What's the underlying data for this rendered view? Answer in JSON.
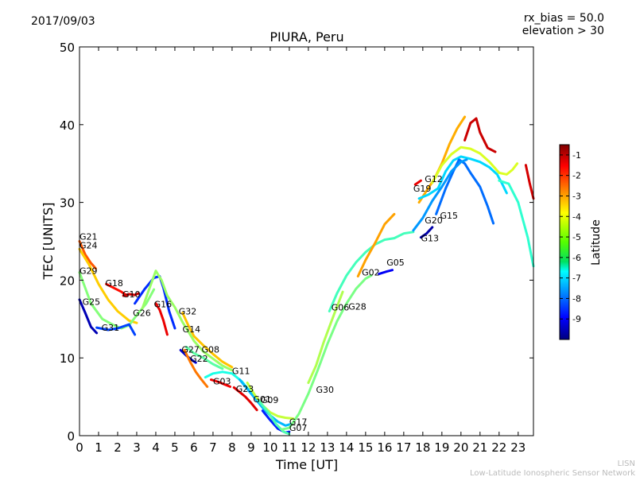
{
  "header": {
    "date": "2017/09/03",
    "rx_bias": "rx_bias = 50.0",
    "elevation": "elevation > 30"
  },
  "footer": {
    "org_short": "LISN",
    "org_long": "Low-Latitude Ionospheric Sensor Network"
  },
  "colorbar": {
    "label": "Latitude",
    "range": [
      -10,
      -0.5
    ],
    "ticks": [
      "-1",
      "-2",
      "-3",
      "-4",
      "-5",
      "-6",
      "-7",
      "-8",
      "-9"
    ],
    "colormap": "jet"
  },
  "chart_data": {
    "type": "line",
    "title": "PIURA, Peru",
    "xlabel": "Time [UT]",
    "ylabel": "TEC [UNITS]",
    "xlim": [
      0,
      23.8
    ],
    "ylim": [
      0,
      50
    ],
    "xticks": [
      0,
      1,
      2,
      3,
      4,
      5,
      6,
      7,
      8,
      9,
      10,
      11,
      12,
      13,
      14,
      15,
      16,
      17,
      18,
      19,
      20,
      21,
      22,
      23
    ],
    "yticks": [
      0,
      10,
      20,
      30,
      40,
      50
    ],
    "grid": false,
    "series": [
      {
        "name": "G21",
        "lat": -2.5,
        "points": [
          [
            0,
            25
          ],
          [
            0.3,
            23.3
          ],
          [
            0.6,
            22.2
          ],
          [
            0.85,
            21.5
          ]
        ]
      },
      {
        "name": "G24",
        "lat": -3.6,
        "points": [
          [
            0,
            24
          ],
          [
            0.5,
            22
          ],
          [
            1,
            19.5
          ],
          [
            1.5,
            17.5
          ],
          [
            2,
            16
          ],
          [
            2.6,
            14.8
          ],
          [
            3,
            14.5
          ]
        ]
      },
      {
        "name": "G29",
        "lat": -5.2,
        "points": [
          [
            0,
            21
          ],
          [
            0.6,
            17
          ],
          [
            1.2,
            15
          ],
          [
            1.8,
            14.2
          ],
          [
            2.2,
            13.8
          ],
          [
            2.6,
            14.2
          ],
          [
            3,
            15.5
          ],
          [
            3.5,
            17
          ],
          [
            3.9,
            18.8
          ]
        ]
      },
      {
        "name": "G25",
        "lat": -9.5,
        "points": [
          [
            0,
            17.5
          ],
          [
            0.3,
            15.8
          ],
          [
            0.6,
            14
          ],
          [
            0.9,
            13.2
          ]
        ]
      },
      {
        "name": "G31",
        "lat": -8.2,
        "points": [
          [
            0.9,
            13.9
          ],
          [
            1.5,
            13.6
          ],
          [
            2,
            13.8
          ],
          [
            2.6,
            14.3
          ],
          [
            2.9,
            13
          ]
        ]
      },
      {
        "name": "G18",
        "lat": -1.8,
        "points": [
          [
            1.4,
            19.5
          ],
          [
            1.8,
            19
          ],
          [
            2.2,
            18.5
          ],
          [
            2.5,
            18
          ]
        ]
      },
      {
        "name": "G10",
        "lat": -1.2,
        "points": [
          [
            2.3,
            18
          ],
          [
            2.6,
            18.2
          ],
          [
            2.9,
            18.1
          ],
          [
            3.1,
            18.3
          ]
        ]
      },
      {
        "name": "G26",
        "lat": -8.4,
        "points": [
          [
            2.9,
            17
          ],
          [
            3.4,
            18.8
          ],
          [
            3.9,
            20.3
          ],
          [
            4.2,
            20.5
          ],
          [
            4.4,
            19
          ],
          [
            4.7,
            16
          ],
          [
            5,
            13.8
          ]
        ]
      },
      {
        "name": "G16",
        "lat": -1.5,
        "points": [
          [
            4,
            17
          ],
          [
            4.2,
            16.2
          ],
          [
            4.4,
            14.8
          ],
          [
            4.6,
            13
          ]
        ]
      },
      {
        "name": "G32",
        "lat": -3.5,
        "points": [
          [
            5.4,
            15.8
          ],
          [
            5.7,
            14.2
          ],
          [
            6,
            12.8
          ],
          [
            6.5,
            11.6
          ],
          [
            7,
            10.5
          ],
          [
            7.5,
            9.5
          ],
          [
            8,
            8.8
          ]
        ]
      },
      {
        "name": "G14",
        "lat": -5.0,
        "points": [
          [
            3.3,
            16.4
          ],
          [
            3.6,
            18.5
          ],
          [
            4.0,
            21.2
          ],
          [
            4.3,
            20
          ],
          [
            4.6,
            18
          ],
          [
            5,
            16.5
          ],
          [
            5.4,
            14.6
          ],
          [
            5.7,
            13.4
          ],
          [
            6,
            12.2
          ],
          [
            6.5,
            10.8
          ],
          [
            7,
            9.9
          ],
          [
            7.5,
            9
          ],
          [
            8,
            8.4
          ]
        ]
      },
      {
        "name": "G27",
        "lat": -9.3,
        "points": [
          [
            5.3,
            11
          ],
          [
            5.6,
            10.3
          ],
          [
            5.9,
            9.7
          ],
          [
            6.1,
            9.4
          ]
        ]
      },
      {
        "name": "G22",
        "lat": -2.8,
        "points": [
          [
            5.5,
            11
          ],
          [
            5.8,
            9.5
          ],
          [
            6.1,
            8.2
          ],
          [
            6.4,
            7.2
          ],
          [
            6.7,
            6.3
          ]
        ]
      },
      {
        "name": "G08",
        "lat": -5.6,
        "points": [
          [
            5.6,
            11.4
          ],
          [
            6,
            10.6
          ],
          [
            6.5,
            10
          ],
          [
            7,
            9.2
          ],
          [
            7.5,
            8.6
          ]
        ]
      },
      {
        "name": "G11",
        "lat": -6.2,
        "points": [
          [
            6.6,
            7.5
          ],
          [
            7,
            8
          ],
          [
            7.5,
            8.2
          ],
          [
            8,
            8
          ],
          [
            8.5,
            7
          ],
          [
            9,
            5.5
          ],
          [
            9.5,
            4
          ]
        ]
      },
      {
        "name": "G03",
        "lat": -1.6,
        "points": [
          [
            6.9,
            7.2
          ],
          [
            7.3,
            6.9
          ],
          [
            7.6,
            6.6
          ],
          [
            7.9,
            6.3
          ]
        ]
      },
      {
        "name": "G23",
        "lat": -1.4,
        "points": [
          [
            8.1,
            6.2
          ],
          [
            8.4,
            5.6
          ],
          [
            8.7,
            5
          ],
          [
            9,
            4.2
          ],
          [
            9.3,
            3.3
          ]
        ]
      },
      {
        "name": "G01",
        "lat": -7.1,
        "points": [
          [
            8.4,
            7.2
          ],
          [
            8.8,
            6
          ],
          [
            9.2,
            4.8
          ],
          [
            9.6,
            3.6
          ],
          [
            10,
            2.6
          ],
          [
            10.4,
            1.8
          ],
          [
            10.8,
            1.3
          ],
          [
            11.1,
            1.5
          ]
        ]
      },
      {
        "name": "G09",
        "lat": -4.6,
        "points": [
          [
            8.8,
            6.8
          ],
          [
            9.2,
            5.2
          ],
          [
            9.6,
            3.9
          ],
          [
            10,
            3
          ],
          [
            10.4,
            2.5
          ],
          [
            10.8,
            2.3
          ],
          [
            11.2,
            2.2
          ]
        ]
      },
      {
        "name": "G17",
        "lat": -8.5,
        "points": [
          [
            9.6,
            3.2
          ],
          [
            10,
            2
          ],
          [
            10.4,
            0.9
          ],
          [
            10.8,
            0.4
          ],
          [
            11,
            0.5
          ]
        ]
      },
      {
        "name": "G07",
        "lat": -5.7,
        "points": [
          [
            9.4,
            4.5
          ],
          [
            9.9,
            3
          ],
          [
            10.3,
            1.5
          ],
          [
            10.7,
            0.5
          ],
          [
            11,
            0.2
          ]
        ]
      },
      {
        "name": "G30",
        "lat": -5.3,
        "points": [
          [
            10.6,
            0.8
          ],
          [
            11,
            1
          ],
          [
            11.5,
            2.8
          ],
          [
            12,
            5.4
          ],
          [
            12.5,
            8.5
          ],
          [
            13,
            11.8
          ],
          [
            13.5,
            14.7
          ],
          [
            14,
            17
          ],
          [
            14.5,
            18.9
          ],
          [
            15,
            20.2
          ],
          [
            15.3,
            20.6
          ]
        ]
      },
      {
        "name": "G06",
        "lat": -5.8,
        "points": [
          [
            13.1,
            16
          ],
          [
            13.5,
            18.3
          ],
          [
            14,
            20.6
          ],
          [
            14.5,
            22.3
          ],
          [
            15,
            23.6
          ],
          [
            15.5,
            24.6
          ],
          [
            16,
            25.2
          ],
          [
            16.5,
            25.4
          ],
          [
            17,
            26
          ],
          [
            17.5,
            26.2
          ]
        ]
      },
      {
        "name": "G28",
        "lat": -4.8,
        "points": [
          [
            12,
            6.8
          ],
          [
            12.4,
            9
          ],
          [
            12.8,
            12
          ],
          [
            13.1,
            14
          ],
          [
            13.5,
            16.6
          ],
          [
            13.8,
            18.5
          ]
        ]
      },
      {
        "name": "G02",
        "lat": -3.2,
        "points": [
          [
            14.6,
            20.5
          ],
          [
            15,
            22.6
          ],
          [
            15.5,
            24.8
          ],
          [
            16,
            27.2
          ],
          [
            16.5,
            28.5
          ]
        ]
      },
      {
        "name": "G05",
        "lat": -8.9,
        "points": [
          [
            15.7,
            20.8
          ],
          [
            16.1,
            21.1
          ],
          [
            16.4,
            21.3
          ]
        ]
      },
      {
        "name": "G13",
        "lat": -9.6,
        "points": [
          [
            17.9,
            25.5
          ],
          [
            18.2,
            26
          ],
          [
            18.5,
            26.8
          ]
        ]
      },
      {
        "name": "G19",
        "lat": -1.5,
        "points": [
          [
            17.6,
            32.3
          ],
          [
            17.9,
            32.8
          ]
        ]
      },
      {
        "name": "G12",
        "lat": -3.3,
        "points": [
          [
            17.8,
            30
          ],
          [
            18.2,
            31.5
          ],
          [
            18.6,
            33
          ],
          [
            19,
            35
          ],
          [
            19.4,
            37.5
          ],
          [
            19.8,
            39.5
          ],
          [
            20.2,
            41
          ]
        ]
      },
      {
        "name": "G20",
        "lat": -6.8,
        "points": [
          [
            17.8,
            30.5
          ],
          [
            18.3,
            31
          ],
          [
            18.8,
            31.8
          ],
          [
            19.2,
            34
          ],
          [
            19.6,
            35.4
          ],
          [
            20,
            35.9
          ],
          [
            20.5,
            35.6
          ],
          [
            21,
            35.2
          ],
          [
            21.5,
            34.5
          ],
          [
            21.9,
            33.6
          ],
          [
            22.2,
            32.2
          ],
          [
            22.4,
            31.2
          ]
        ]
      },
      {
        "name": "G15",
        "lat": -7.8,
        "points": [
          [
            18.7,
            28.5
          ],
          [
            19.2,
            31.8
          ],
          [
            19.6,
            34
          ],
          [
            19.9,
            35.5
          ],
          [
            20.2,
            35
          ],
          [
            20.5,
            33.8
          ],
          [
            21,
            32
          ],
          [
            21.4,
            29.5
          ],
          [
            21.7,
            27.3
          ]
        ]
      },
      {
        "name": "G13b",
        "lat": -7.4,
        "points": [
          [
            17.5,
            26.4
          ],
          [
            18,
            28
          ],
          [
            18.5,
            30.2
          ],
          [
            19,
            32
          ],
          [
            19.5,
            34
          ],
          [
            20,
            35.2
          ],
          [
            20.3,
            35.5
          ]
        ]
      },
      {
        "name": "G20b",
        "lat": -4.4,
        "points": [
          [
            18.5,
            32.5
          ],
          [
            19,
            34.8
          ],
          [
            19.5,
            36.2
          ],
          [
            20,
            37.1
          ],
          [
            20.5,
            36.9
          ],
          [
            21,
            36.3
          ],
          [
            21.5,
            35.2
          ],
          [
            22,
            33.8
          ],
          [
            22.4,
            33.6
          ],
          [
            22.7,
            34.2
          ],
          [
            22.95,
            35
          ]
        ]
      },
      {
        "name": "G12b",
        "lat": -1.2,
        "points": [
          [
            20.2,
            38
          ],
          [
            20.5,
            40.2
          ],
          [
            20.8,
            40.8
          ],
          [
            21,
            39
          ],
          [
            21.4,
            37
          ],
          [
            21.8,
            36.5
          ]
        ]
      },
      {
        "name": "G15b",
        "lat": -6.0,
        "points": [
          [
            22,
            32.8
          ],
          [
            22.5,
            32.4
          ],
          [
            23,
            30
          ],
          [
            23.5,
            25.5
          ],
          [
            23.8,
            21.8
          ]
        ]
      },
      {
        "name": "G22b",
        "lat": -1.3,
        "points": [
          [
            23.4,
            34.8
          ],
          [
            23.6,
            32.5
          ],
          [
            23.8,
            30.5
          ]
        ]
      }
    ],
    "prn_labels": [
      {
        "text": "G21",
        "x": 0.0,
        "y": 25.2
      },
      {
        "text": "G24",
        "x": 0.0,
        "y": 24.1
      },
      {
        "text": "G29",
        "x": 0.0,
        "y": 20.8
      },
      {
        "text": "G25",
        "x": 0.15,
        "y": 16.8
      },
      {
        "text": "G31",
        "x": 1.15,
        "y": 13.5
      },
      {
        "text": "G18",
        "x": 1.35,
        "y": 19.2
      },
      {
        "text": "G10",
        "x": 2.25,
        "y": 17.8
      },
      {
        "text": "G26",
        "x": 2.8,
        "y": 15.4
      },
      {
        "text": "G16",
        "x": 3.9,
        "y": 16.5
      },
      {
        "text": "G32",
        "x": 5.2,
        "y": 15.6
      },
      {
        "text": "G14",
        "x": 5.4,
        "y": 13.3
      },
      {
        "text": "G27",
        "x": 5.35,
        "y": 10.7
      },
      {
        "text": "G22",
        "x": 5.8,
        "y": 9.5
      },
      {
        "text": "G08",
        "x": 6.4,
        "y": 10.7
      },
      {
        "text": "G11",
        "x": 8.0,
        "y": 7.9
      },
      {
        "text": "G03",
        "x": 7.0,
        "y": 6.6
      },
      {
        "text": "G23",
        "x": 8.2,
        "y": 5.6
      },
      {
        "text": "G01",
        "x": 9.1,
        "y": 4.3
      },
      {
        "text": "G09",
        "x": 9.5,
        "y": 4.2
      },
      {
        "text": "G17",
        "x": 11.0,
        "y": 1.4
      },
      {
        "text": "G07",
        "x": 11.0,
        "y": 0.6
      },
      {
        "text": "G30",
        "x": 12.4,
        "y": 5.5
      },
      {
        "text": "G06",
        "x": 13.2,
        "y": 16.1
      },
      {
        "text": "G28",
        "x": 14.1,
        "y": 16.2
      },
      {
        "text": "G02",
        "x": 14.8,
        "y": 20.6
      },
      {
        "text": "G05",
        "x": 16.1,
        "y": 21.9
      },
      {
        "text": "G13",
        "x": 17.9,
        "y": 25.0
      },
      {
        "text": "G19",
        "x": 17.5,
        "y": 31.4
      },
      {
        "text": "G12",
        "x": 18.1,
        "y": 32.6
      },
      {
        "text": "G20",
        "x": 18.1,
        "y": 27.3
      },
      {
        "text": "G15",
        "x": 18.9,
        "y": 27.9
      }
    ]
  }
}
